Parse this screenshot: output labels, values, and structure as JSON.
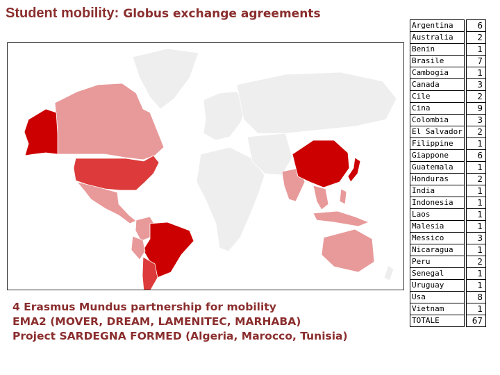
{
  "title": {
    "main": "Student mobility:",
    "sub": " Globus exchange agreements"
  },
  "caption": {
    "line1": "4 Erasmus Mundus partnership for mobility",
    "line2": "EMA2 (MOVER, DREAM, LAMENITEC, MARHABA)",
    "line3": "Project SARDEGNA FORMED (Algeria, Marocco, Tunisia)"
  },
  "colors": {
    "high": "#cc0000",
    "mid": "#dd3b3b",
    "low": "#e89a9a",
    "none": "#eeeeee",
    "ocean": "#ffffff",
    "text": "#8b2e2e"
  },
  "table": {
    "rows": [
      {
        "country": "Argentina",
        "count": "6"
      },
      {
        "country": "Australia",
        "count": "2"
      },
      {
        "country": "Benin",
        "count": "1"
      },
      {
        "country": "Brasile",
        "count": "7"
      },
      {
        "country": "Cambogia",
        "count": "1"
      },
      {
        "country": "Canada",
        "count": "3"
      },
      {
        "country": "Cile",
        "count": "2"
      },
      {
        "country": "Cina",
        "count": "9"
      },
      {
        "country": "Colombia",
        "count": "3"
      },
      {
        "country": "El Salvador",
        "count": "2"
      },
      {
        "country": "Filippine",
        "count": "1"
      },
      {
        "country": "Giappone",
        "count": "6"
      },
      {
        "country": "Guatemala",
        "count": "1"
      },
      {
        "country": "Honduras",
        "count": "2"
      },
      {
        "country": "India",
        "count": "1"
      },
      {
        "country": "Indonesia",
        "count": "1"
      },
      {
        "country": "Laos",
        "count": "1"
      },
      {
        "country": "Malesia",
        "count": "1"
      },
      {
        "country": "Messico",
        "count": "3"
      },
      {
        "country": "Nicaragua",
        "count": "1"
      },
      {
        "country": "Peru",
        "count": "2"
      },
      {
        "country": "Senegal",
        "count": "1"
      },
      {
        "country": "Uruguay",
        "count": "1"
      },
      {
        "country": "Usa",
        "count": "8"
      },
      {
        "country": "Vietnam",
        "count": "1"
      }
    ],
    "total": {
      "country": "TOTALE",
      "count": "67"
    }
  }
}
